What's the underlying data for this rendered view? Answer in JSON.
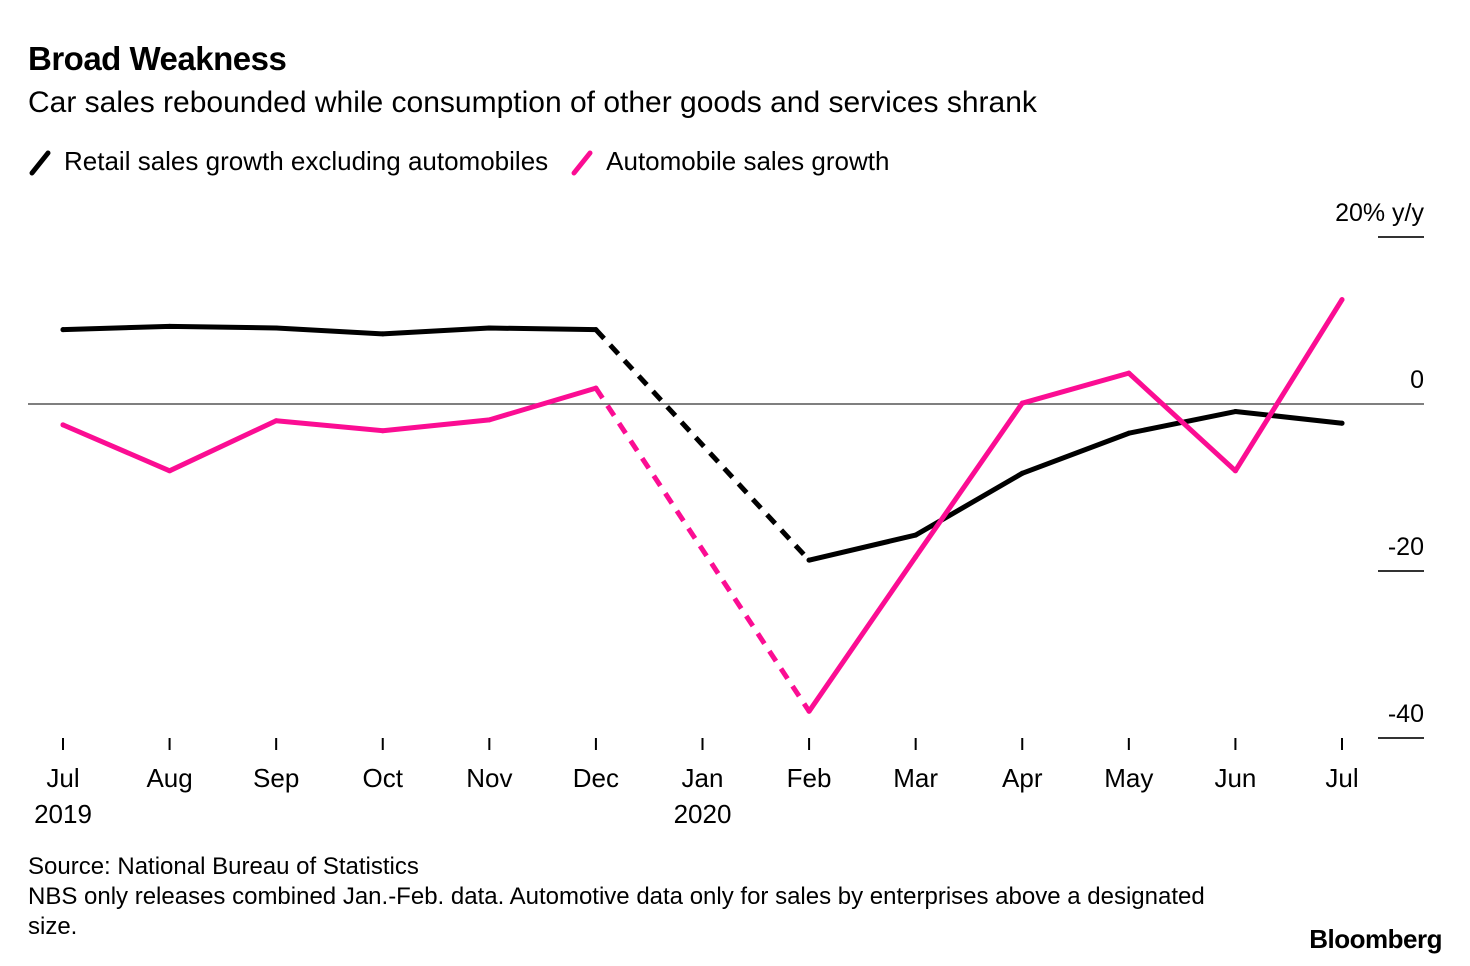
{
  "chart_data": {
    "type": "line",
    "title": "Broad Weakness",
    "subtitle": "Car sales rebounded while consumption of other goods and services shrank",
    "xlabel": "",
    "ylabel": "% y/y",
    "ylim": [
      -40,
      20
    ],
    "yticks": [
      {
        "value": 20,
        "label": "20% y/y"
      },
      {
        "value": 0,
        "label": "0"
      },
      {
        "value": -20,
        "label": "-20"
      },
      {
        "value": -40,
        "label": "-40"
      }
    ],
    "grid": false,
    "zero_line": true,
    "legend_position": "top-left",
    "categories": [
      "Jul",
      "Aug",
      "Sep",
      "Oct",
      "Nov",
      "Dec",
      "Jan",
      "Feb",
      "Mar",
      "Apr",
      "May",
      "Jun",
      "Jul"
    ],
    "year_labels": [
      {
        "index": 0,
        "label": "2019"
      },
      {
        "index": 6,
        "label": "2020"
      }
    ],
    "series": [
      {
        "name": "Retail sales growth excluding automobiles",
        "color": "#000000",
        "values": [
          8.9,
          9.3,
          9.1,
          8.4,
          9.1,
          8.9,
          null,
          -18.7,
          -15.7,
          -8.3,
          -3.5,
          -0.9,
          -2.3
        ],
        "dashed_segments": [
          [
            5,
            7
          ]
        ]
      },
      {
        "name": "Automobile sales growth",
        "color": "#fb0d93",
        "values": [
          -2.5,
          -8.0,
          -2.0,
          -3.2,
          -1.9,
          1.9,
          null,
          -36.8,
          -18.3,
          0.1,
          3.7,
          -8.0,
          12.5
        ],
        "dashed_segments": [
          [
            5,
            7
          ]
        ]
      }
    ]
  },
  "footer": {
    "source": "Source: National Bureau of Statistics",
    "note": "NBS only releases combined Jan.-Feb. data. Automotive data only for sales by enterprises above a designated size."
  },
  "brand": "Bloomberg"
}
